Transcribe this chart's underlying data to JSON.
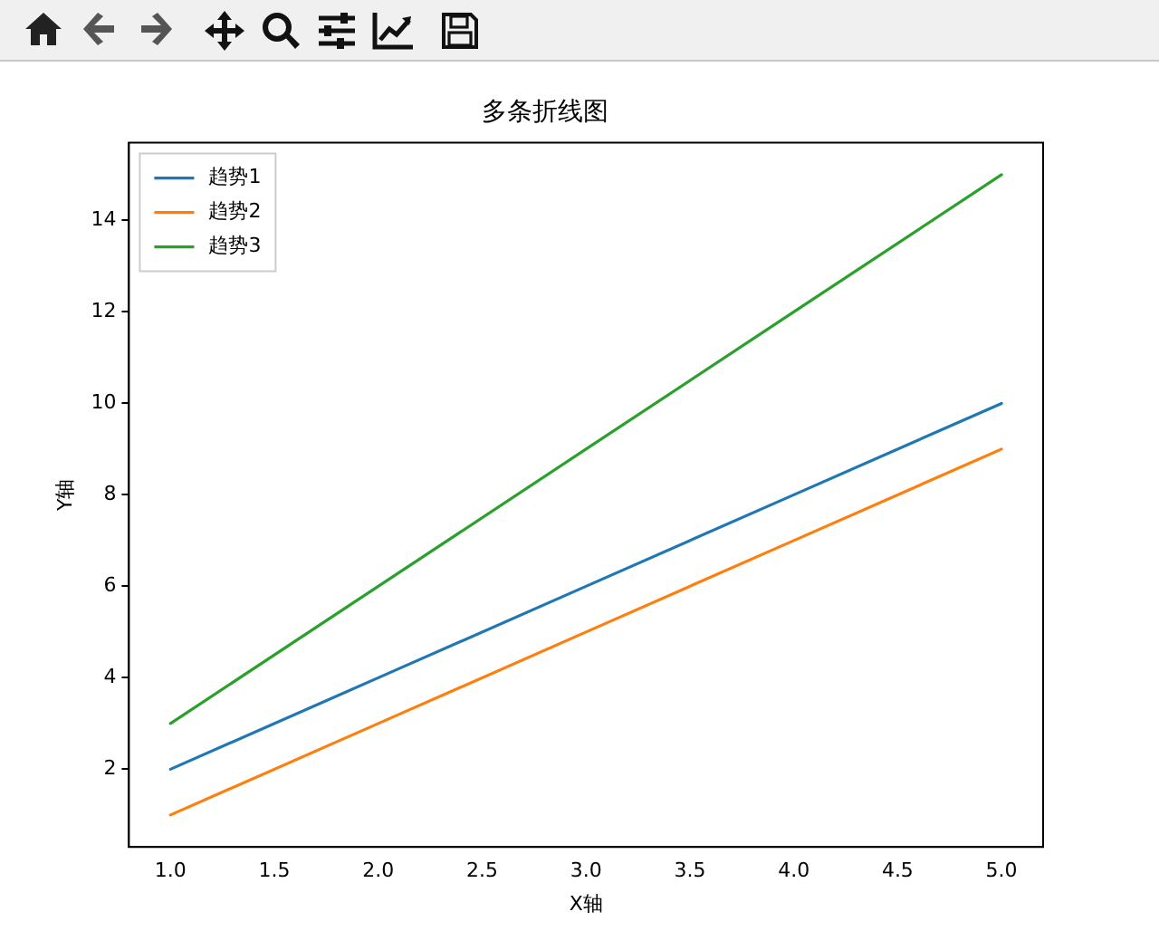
{
  "chart_data": {
    "type": "line",
    "title": "多条折线图",
    "xlabel": "X轴",
    "ylabel": "Y轴",
    "x": [
      1,
      2,
      3,
      4,
      5
    ],
    "series": [
      {
        "name": "趋势1",
        "color": "#1f77b4",
        "values": [
          2,
          4,
          6,
          8,
          10
        ]
      },
      {
        "name": "趋势2",
        "color": "#ff7f0e",
        "values": [
          1,
          3,
          5,
          7,
          9
        ]
      },
      {
        "name": "趋势3",
        "color": "#2ca02c",
        "values": [
          3,
          6,
          9,
          12,
          15
        ]
      }
    ],
    "xlim": [
      0.8,
      5.2
    ],
    "xticks": [
      {
        "value": 1,
        "label": "1.0"
      },
      {
        "value": 1.5,
        "label": "1.5"
      },
      {
        "value": 2,
        "label": "2.0"
      },
      {
        "value": 2.5,
        "label": "2.5"
      },
      {
        "value": 3,
        "label": "3.0"
      },
      {
        "value": 3.5,
        "label": "3.5"
      },
      {
        "value": 4,
        "label": "4.0"
      },
      {
        "value": 4.5,
        "label": "4.5"
      },
      {
        "value": 5,
        "label": "5.0"
      }
    ],
    "ylim": [
      0.3,
      15.7
    ],
    "yticks": [
      2,
      4,
      6,
      8,
      10,
      12,
      14
    ],
    "legend": "top left",
    "grid": false,
    "marker": "none",
    "line_style": "solid"
  }
}
